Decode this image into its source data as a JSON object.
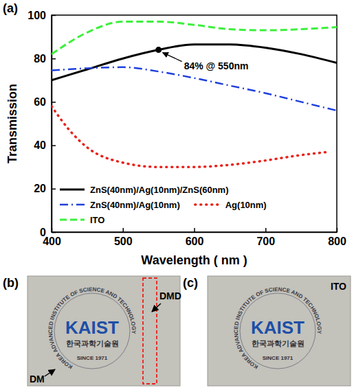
{
  "chart_data": {
    "type": "line",
    "panel_label": "(a)",
    "x_label": "Wavelength ( nm )",
    "y_label": "Transmission",
    "xlim": [
      400,
      800
    ],
    "xticks": [
      400,
      500,
      600,
      700,
      800
    ],
    "ylim": [
      0,
      100
    ],
    "yticks": [
      0,
      20,
      40,
      60,
      80,
      100
    ],
    "grid": false,
    "legend": "lower left",
    "series": [
      {
        "name": "ZnS(40nm)/Ag(10nm)/ZnS(60nm)",
        "color": "#000000",
        "line_style": "solid",
        "x": [
          400,
          450,
          500,
          550,
          600,
          650,
          700,
          750,
          800
        ],
        "values": [
          70,
          75,
          80,
          84,
          86.5,
          86.5,
          85,
          82,
          78
        ]
      },
      {
        "name": "ZnS(40nm)/Ag(10nm)",
        "color": "#1f3fdc",
        "line_style": "dashdot",
        "x": [
          400,
          450,
          500,
          550,
          600,
          650,
          700,
          750,
          800
        ],
        "values": [
          74.5,
          75.5,
          76,
          74,
          71,
          67.5,
          64,
          60,
          56
        ]
      },
      {
        "name": "Ag(10nm)",
        "color": "#e8231b",
        "line_style": "dotted",
        "x": [
          400,
          425,
          450,
          500,
          550,
          600,
          650,
          700,
          750,
          790
        ],
        "values": [
          58,
          47,
          39,
          32,
          30,
          30,
          31,
          33,
          35.5,
          37
        ]
      },
      {
        "name": "ITO",
        "color": "#3cf03c",
        "line_style": "dashed",
        "x": [
          400,
          450,
          500,
          550,
          600,
          650,
          700,
          750,
          800
        ],
        "values": [
          82,
          92,
          97,
          97,
          95.5,
          93.5,
          93,
          93.5,
          94.5
        ]
      }
    ],
    "annotations": [
      {
        "x": 550,
        "y": 84,
        "text": "84% @ 550nm",
        "marker": "circle"
      }
    ]
  },
  "photos": [
    {
      "label": "(b)",
      "ring_text": "KOREA ADVANCED INSTITUTE OF SCIENCE AND TECHNOLOGY",
      "logo": "KAIST",
      "korean": "한국과학기술원",
      "since": "SINCE 1971",
      "callouts": [
        "DMD",
        "DM"
      ]
    },
    {
      "label": "(c)",
      "ring_text": "KOREA ADVANCED INSTITUTE OF SCIENCE AND TECHNOLOGY",
      "logo": "KAIST",
      "korean": "한국과학기술원",
      "since": "SINCE 1971",
      "callouts": [
        "ITO"
      ]
    }
  ]
}
